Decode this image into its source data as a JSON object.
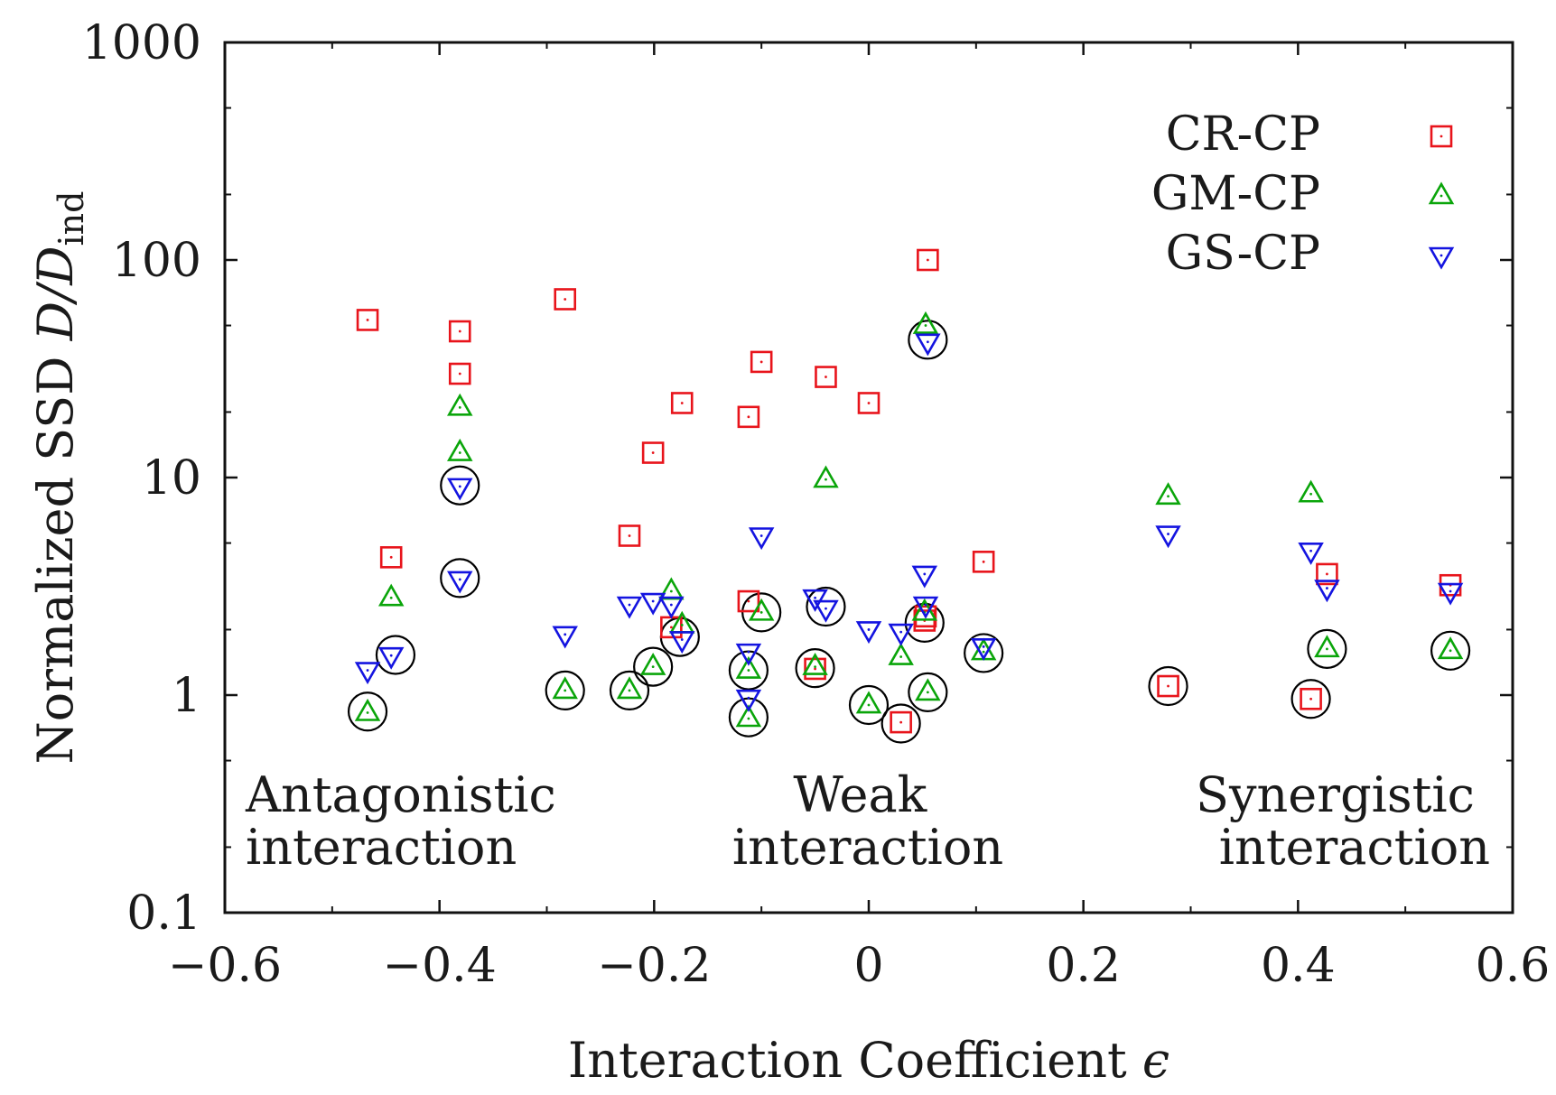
{
  "chart_data": {
    "type": "scatter",
    "title": "",
    "xlabel": "Interaction Coefficient",
    "xlabel_symbol": "ϵ",
    "ylabel": "Normalized SSD",
    "ylabel_symbol": "D/D",
    "ylabel_subscript": "ind",
    "xlim": [
      -0.6,
      0.6
    ],
    "ylim": [
      0.1,
      1000
    ],
    "yscale": "log",
    "xticks": [
      -0.6,
      -0.4,
      -0.2,
      0,
      0.2,
      0.4,
      0.6
    ],
    "xtick_labels": [
      "−0.6",
      "−0.4",
      "−0.2",
      "0",
      "0.2",
      "0.4",
      "0.6"
    ],
    "yticks": [
      0.1,
      1,
      10,
      100,
      1000
    ],
    "ytick_labels": [
      "0.1",
      "1",
      "10",
      "100",
      "1000"
    ],
    "legend_position": "top-right",
    "series": [
      {
        "name": "CR-CP",
        "marker": "square",
        "color": "#e8141b",
        "points": [
          [
            -0.467,
            53
          ],
          [
            -0.445,
            4.3
          ],
          [
            -0.381,
            47
          ],
          [
            -0.381,
            30
          ],
          [
            -0.283,
            66
          ],
          [
            -0.223,
            5.4
          ],
          [
            -0.201,
            13
          ],
          [
            -0.184,
            2.05
          ],
          [
            -0.174,
            22
          ],
          [
            -0.112,
            2.7
          ],
          [
            -0.112,
            19
          ],
          [
            -0.1,
            34
          ],
          [
            -0.05,
            1.32
          ],
          [
            -0.04,
            29
          ],
          [
            0.0,
            22
          ],
          [
            0.03,
            0.75
          ],
          [
            0.052,
            2.2
          ],
          [
            0.053,
            2.3
          ],
          [
            0.055,
            100
          ],
          [
            0.107,
            4.1
          ],
          [
            0.279,
            1.1
          ],
          [
            0.412,
            0.96
          ],
          [
            0.427,
            3.6
          ],
          [
            0.542,
            3.2
          ]
        ]
      },
      {
        "name": "GM-CP",
        "marker": "triangle-up",
        "color": "#0aa50a",
        "points": [
          [
            -0.467,
            0.83
          ],
          [
            -0.445,
            2.8
          ],
          [
            -0.381,
            21
          ],
          [
            -0.381,
            13
          ],
          [
            -0.283,
            1.05
          ],
          [
            -0.223,
            1.05
          ],
          [
            -0.201,
            1.35
          ],
          [
            -0.184,
            3.0
          ],
          [
            -0.174,
            2.1
          ],
          [
            -0.112,
            0.78
          ],
          [
            -0.112,
            1.3
          ],
          [
            -0.1,
            2.4
          ],
          [
            -0.05,
            1.35
          ],
          [
            -0.04,
            9.8
          ],
          [
            0.0,
            0.9
          ],
          [
            0.03,
            1.5
          ],
          [
            0.052,
            2.4
          ],
          [
            0.053,
            50
          ],
          [
            0.055,
            1.03
          ],
          [
            0.107,
            1.58
          ],
          [
            0.279,
            8.2
          ],
          [
            0.412,
            8.4
          ],
          [
            0.427,
            1.63
          ],
          [
            0.542,
            1.6
          ]
        ]
      },
      {
        "name": "GS-CP",
        "marker": "triangle-down",
        "color": "#1414e0",
        "points": [
          [
            -0.467,
            1.3
          ],
          [
            -0.445,
            1.52
          ],
          [
            -0.381,
            9.1
          ],
          [
            -0.381,
            3.4
          ],
          [
            -0.283,
            1.9
          ],
          [
            -0.223,
            2.6
          ],
          [
            -0.201,
            2.7
          ],
          [
            -0.184,
            2.6
          ],
          [
            -0.174,
            1.8
          ],
          [
            -0.112,
            0.97
          ],
          [
            -0.112,
            1.58
          ],
          [
            -0.1,
            5.4
          ],
          [
            -0.05,
            2.8
          ],
          [
            -0.04,
            2.5
          ],
          [
            0.0,
            2.0
          ],
          [
            0.03,
            1.95
          ],
          [
            0.052,
            3.6
          ],
          [
            0.053,
            2.6
          ],
          [
            0.055,
            42
          ],
          [
            0.107,
            1.67
          ],
          [
            0.279,
            5.5
          ],
          [
            0.412,
            4.6
          ],
          [
            0.427,
            3.1
          ],
          [
            0.542,
            3.0
          ]
        ]
      }
    ],
    "highlight": {
      "marker": "circle",
      "color": "#000000",
      "points": [
        [
          -0.467,
          0.84
        ],
        [
          -0.441,
          1.53
        ],
        [
          -0.381,
          9.2
        ],
        [
          -0.381,
          3.45
        ],
        [
          -0.283,
          1.05
        ],
        [
          -0.223,
          1.05
        ],
        [
          -0.201,
          1.35
        ],
        [
          -0.176,
          1.85
        ],
        [
          -0.112,
          0.79
        ],
        [
          -0.112,
          1.3
        ],
        [
          -0.1,
          2.4
        ],
        [
          -0.05,
          1.33
        ],
        [
          -0.04,
          2.55
        ],
        [
          0.0,
          0.9
        ],
        [
          0.03,
          0.74
        ],
        [
          0.052,
          2.15
        ],
        [
          0.055,
          43
        ],
        [
          0.055,
          1.03
        ],
        [
          0.107,
          1.56
        ],
        [
          0.279,
          1.1
        ],
        [
          0.412,
          0.96
        ],
        [
          0.427,
          1.63
        ],
        [
          0.542,
          1.6
        ]
      ]
    },
    "region_labels": [
      {
        "lines": [
          "Antagonistic",
          "interaction"
        ],
        "align": "left"
      },
      {
        "lines": [
          "Weak",
          "interaction"
        ],
        "align": "center"
      },
      {
        "lines": [
          "Synergistic",
          "interaction"
        ],
        "align": "right"
      }
    ]
  }
}
